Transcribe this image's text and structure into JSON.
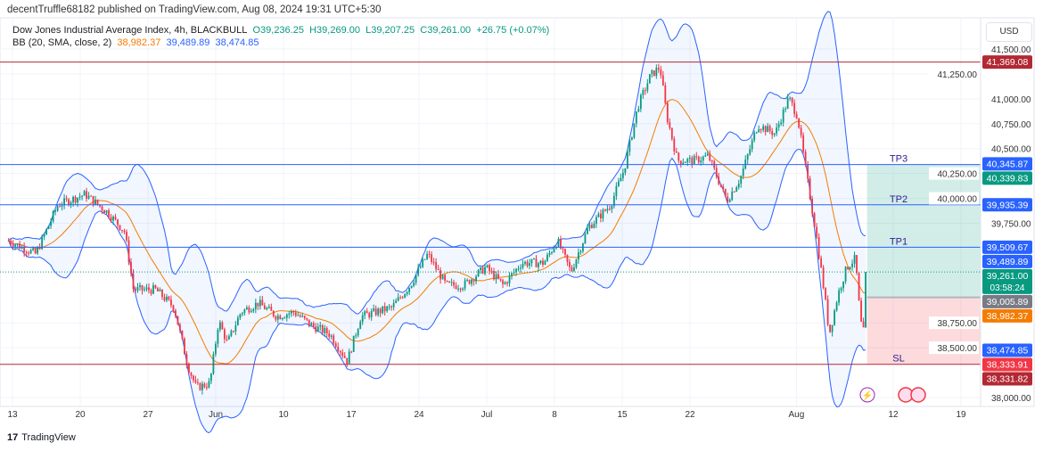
{
  "header": {
    "published": "decentTruffle68182 published on TradingView.com, Aug 08, 2024 19:31 UTC+5:30",
    "symbol": "Dow Jones Industrial Average Index, 4h, BLACKBULL",
    "o": "O39,236.25",
    "h": "H39,269.00",
    "l": "L39,207.25",
    "c": "C39,261.00",
    "change": "+26.75 (+0.07%)",
    "bb_label": "BB (20, SMA, close, 2)",
    "bb_mid": "38,982.37",
    "bb_up": "39,489.89",
    "bb_low": "38,474.85"
  },
  "currency": "USD",
  "footer": {
    "logo": "TradingView"
  },
  "chart_data": {
    "type": "candlestick",
    "ylim": [
      37850,
      41700
    ],
    "y_ticks": [
      "41,500.00",
      "41,250.00",
      "41,000.00",
      "40,750.00",
      "40,500.00",
      "40,250.00",
      "40,000.00",
      "39,750.00",
      "38,750.00",
      "38,500.00",
      "38,000.00"
    ],
    "y_tick_values": [
      41500,
      41250,
      41000,
      40750,
      40500,
      40250,
      40000,
      39750,
      38750,
      38500,
      38000
    ],
    "x_ticks": [
      {
        "label": "13",
        "day": 0
      },
      {
        "label": "20",
        "day": 7
      },
      {
        "label": "27",
        "day": 14
      },
      {
        "label": "Jun",
        "day": 21
      },
      {
        "label": "10",
        "day": 28
      },
      {
        "label": "17",
        "day": 35
      },
      {
        "label": "24",
        "day": 42
      },
      {
        "label": "Jul",
        "day": 49
      },
      {
        "label": "8",
        "day": 56
      },
      {
        "label": "15",
        "day": 63
      },
      {
        "label": "22",
        "day": 70
      },
      {
        "label": "Aug",
        "day": 81
      },
      {
        "label": "12",
        "day": 91
      },
      {
        "label": "19",
        "day": 98
      }
    ],
    "xlim_days": [
      -0.8,
      101
    ],
    "price_path": [
      [
        -0.4,
        39576
      ],
      [
        2.4,
        39441
      ],
      [
        4.7,
        39934
      ],
      [
        7.5,
        40041
      ],
      [
        9.8,
        39862
      ],
      [
        11.6,
        39665
      ],
      [
        12.5,
        39083
      ],
      [
        14.8,
        39083
      ],
      [
        16.7,
        38904
      ],
      [
        18.1,
        38322
      ],
      [
        19.0,
        38099
      ],
      [
        20.4,
        38143
      ],
      [
        21.3,
        38770
      ],
      [
        22.2,
        38546
      ],
      [
        23.6,
        38859
      ],
      [
        25.4,
        38949
      ],
      [
        27.3,
        38815
      ],
      [
        29.1,
        38859
      ],
      [
        30.9,
        38725
      ],
      [
        32.8,
        38636
      ],
      [
        34.6,
        38367
      ],
      [
        36.0,
        38815
      ],
      [
        39.2,
        38904
      ],
      [
        41.1,
        39128
      ],
      [
        42.9,
        39441
      ],
      [
        44.8,
        39128
      ],
      [
        46.6,
        39128
      ],
      [
        48.9,
        39307
      ],
      [
        50.7,
        39128
      ],
      [
        52.6,
        39352
      ],
      [
        54.9,
        39352
      ],
      [
        56.3,
        39576
      ],
      [
        57.7,
        39262
      ],
      [
        59.5,
        39710
      ],
      [
        61.8,
        39934
      ],
      [
        63.2,
        40292
      ],
      [
        64.6,
        40918
      ],
      [
        65.9,
        41231
      ],
      [
        66.9,
        41321
      ],
      [
        67.6,
        40829
      ],
      [
        68.7,
        40381
      ],
      [
        70.5,
        40381
      ],
      [
        71.9,
        40426
      ],
      [
        73.8,
        39978
      ],
      [
        75.2,
        40202
      ],
      [
        77.0,
        40739
      ],
      [
        78.8,
        40650
      ],
      [
        80.2,
        41008
      ],
      [
        81.1,
        40829
      ],
      [
        82.1,
        40202
      ],
      [
        83.0,
        39665
      ],
      [
        83.9,
        39038
      ],
      [
        84.4,
        38636
      ],
      [
        85.3,
        39038
      ],
      [
        86.2,
        39307
      ],
      [
        87.1,
        39397
      ],
      [
        87.6,
        38770
      ],
      [
        88.0,
        38636
      ],
      [
        88.3,
        39261
      ]
    ],
    "indicator": "Bollinger Bands (20, SMA, close, 2)",
    "levels": [
      {
        "name": "resistance",
        "value": 41369.08,
        "label": "",
        "color": "#b22833"
      },
      {
        "name": "TP3",
        "value": 40339.83,
        "label": "TP3",
        "color": "#2962ff"
      },
      {
        "name": "TP2",
        "value": 39935.39,
        "label": "TP2",
        "color": "#2962ff"
      },
      {
        "name": "TP1",
        "value": 39509.67,
        "label": "TP1",
        "color": "#2962ff"
      },
      {
        "name": "SL",
        "value": 38333.91,
        "label": "SL",
        "color": "#b22833"
      }
    ],
    "position": {
      "entry": 39005.89,
      "target": 40339.83,
      "stop": 38333.91,
      "start_day": 88.3
    },
    "price_labels": [
      {
        "text": "41,369.08",
        "value": 41369.08,
        "bg": "#b22833"
      },
      {
        "text": "40,345.87",
        "value": 40345.87,
        "bg": "#2962ff"
      },
      {
        "text": "40,339.83",
        "value": 40339.83,
        "bg": "#089981"
      },
      {
        "text": "39,935.39",
        "value": 39935.39,
        "bg": "#2962ff"
      },
      {
        "text": "39,509.67",
        "value": 39509.67,
        "bg": "#2962ff"
      },
      {
        "text": "39,489.89",
        "value": 39489.89,
        "bg": "#2962ff"
      },
      {
        "text": "39,261.00",
        "sub": "03:58:24",
        "value": 39261,
        "bg": "#089981"
      },
      {
        "text": "39,005.89",
        "value": 39005.89,
        "bg": "#787b86"
      },
      {
        "text": "38,982.37",
        "value": 38982.37,
        "bg": "#f57c00"
      },
      {
        "text": "38,474.85",
        "value": 38474.85,
        "bg": "#2962ff"
      },
      {
        "text": "38,333.91",
        "value": 38333.91,
        "bg": "#f23645"
      },
      {
        "text": "38,331.82",
        "value": 38331.82,
        "bg": "#b22833"
      }
    ],
    "colors": {
      "up": "#089981",
      "down": "#f23645",
      "bb": "#2962ff",
      "basis": "#f57c00"
    }
  }
}
